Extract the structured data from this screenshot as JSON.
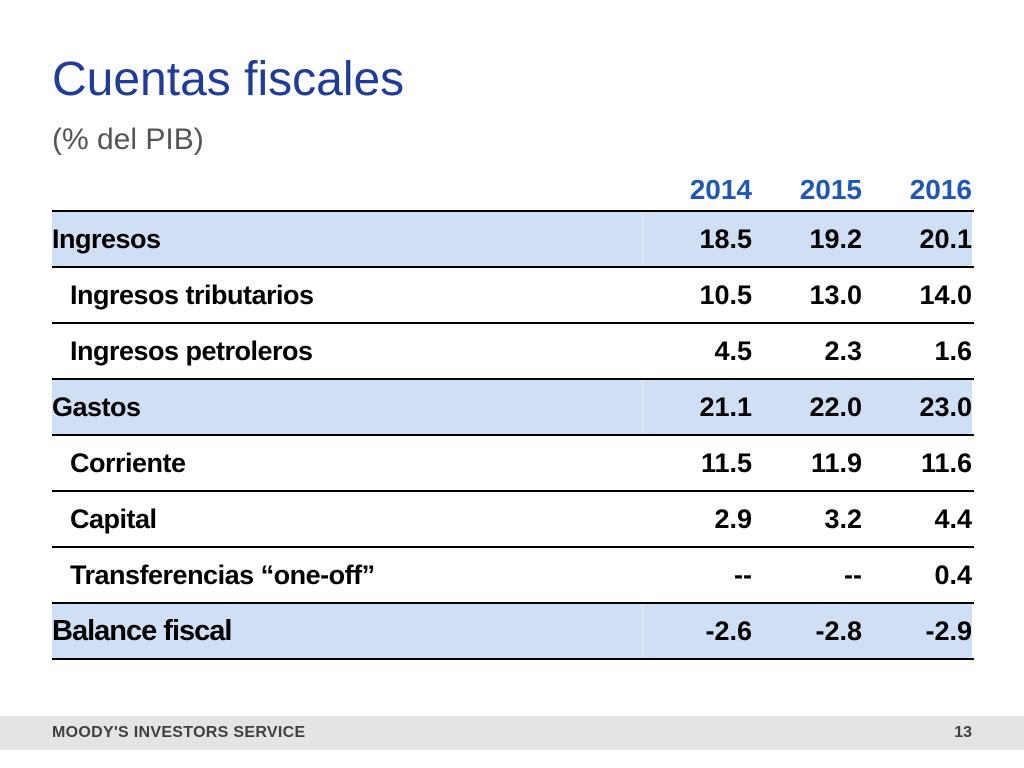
{
  "slide": {
    "title": "Cuentas fiscales",
    "subtitle": "(% del PIB)"
  },
  "table": {
    "years": [
      "2014",
      "2015",
      "2016"
    ],
    "rows": [
      {
        "label": "Ingresos",
        "values": [
          "18.5",
          "19.2",
          "20.1"
        ]
      },
      {
        "label": "Ingresos tributarios",
        "values": [
          "10.5",
          "13.0",
          "14.0"
        ]
      },
      {
        "label": "Ingresos petroleros",
        "values": [
          "4.5",
          "2.3",
          "1.6"
        ]
      },
      {
        "label": "Gastos",
        "values": [
          "21.1",
          "22.0",
          "23.0"
        ]
      },
      {
        "label": "Corriente",
        "values": [
          "11.5",
          "11.9",
          "11.6"
        ]
      },
      {
        "label": "Capital",
        "values": [
          "2.9",
          "3.2",
          "4.4"
        ]
      },
      {
        "label": "Transferencias “one-off”",
        "values": [
          "--",
          "--",
          "0.4"
        ]
      },
      {
        "label": "Balance fiscal",
        "values": [
          "-2.6",
          "-2.8",
          "-2.9"
        ]
      }
    ]
  },
  "footer": {
    "brand": "MOODY'S INVESTORS SERVICE",
    "page_number": "13"
  },
  "colors": {
    "title": "#1f3c98",
    "year_header": "#1f57b4",
    "row_shade": "#cfe0f4"
  }
}
